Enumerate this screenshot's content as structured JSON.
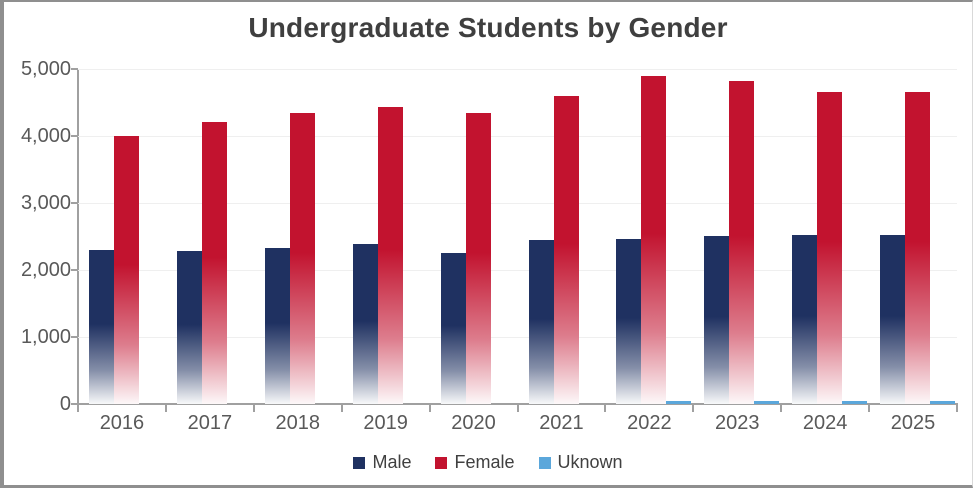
{
  "chart_data": {
    "type": "bar",
    "title": "Undergraduate Students by Gender",
    "categories": [
      "2016",
      "2017",
      "2018",
      "2019",
      "2020",
      "2021",
      "2022",
      "2023",
      "2024",
      "2025"
    ],
    "series": [
      {
        "name": "Male",
        "color": "#1f3161",
        "fade_to_white": true,
        "values": [
          2300,
          2280,
          2330,
          2390,
          2260,
          2450,
          2460,
          2510,
          2520,
          2530
        ]
      },
      {
        "name": "Female",
        "color": "#c2132f",
        "fade_to_white": true,
        "values": [
          4000,
          4210,
          4340,
          4430,
          4350,
          4600,
          4900,
          4820,
          4650,
          4650
        ]
      },
      {
        "name": "Uknown",
        "color": "#5ba7db",
        "fade_to_white": false,
        "values": [
          0,
          0,
          0,
          0,
          0,
          0,
          40,
          45,
          50,
          50
        ]
      }
    ],
    "ylim": [
      0,
      5000
    ],
    "ytick_interval": 1000,
    "ytick_labels": [
      "0",
      "1,000",
      "2,000",
      "3,000",
      "4,000",
      "5,000"
    ],
    "xlabel": "",
    "ylabel": "",
    "grid": true,
    "legend_position": "bottom",
    "colors": {
      "title_text": "#3f3f3f",
      "axis_line": "#a0a0a0",
      "tick_label": "#595959",
      "gridline": "#efefef",
      "background": "#ffffff",
      "frame_border": "#8f8f8f"
    }
  }
}
